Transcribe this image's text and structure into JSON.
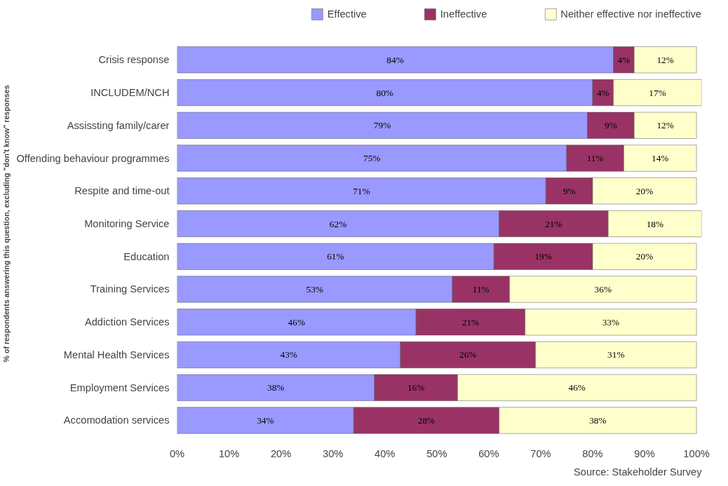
{
  "chart_data": {
    "type": "bar",
    "orientation": "horizontal",
    "stacked": true,
    "ylabel": "% of respondents answering this question, excluding \"don't know\" responses",
    "categories": [
      "Crisis response",
      "INCLUDEM/NCH",
      "Assissting family/carer",
      "Offending behaviour programmes",
      "Respite and time-out",
      "Monitoring Service",
      "Education",
      "Training Services",
      "Addiction Services",
      "Mental Health Services",
      "Employment Services",
      "Accomodation services"
    ],
    "series": [
      {
        "name": "Effective",
        "color": "#9999ff",
        "values": [
          84,
          80,
          79,
          75,
          71,
          62,
          61,
          53,
          46,
          43,
          38,
          34
        ],
        "value_labels": [
          "84%",
          "80%",
          "79%",
          "75%",
          "71%",
          "62%",
          "61%",
          "53%",
          "46%",
          "43%",
          "38%",
          "34%"
        ]
      },
      {
        "name": "Ineffective",
        "color": "#993366",
        "values": [
          4,
          4,
          9,
          11,
          9,
          21,
          19,
          11,
          21,
          26,
          16,
          28
        ],
        "value_labels": [
          "4%",
          "4%",
          "9%",
          "11%",
          "9%",
          "21%",
          "19%",
          "11%",
          "21%",
          "26%",
          "16%",
          "28%"
        ]
      },
      {
        "name": "Neither effective nor ineffective",
        "color": "#ffffcc",
        "values": [
          12,
          17,
          12,
          14,
          20,
          18,
          20,
          36,
          33,
          31,
          46,
          38
        ],
        "value_labels": [
          "12%",
          "17%",
          "12%",
          "14%",
          "20%",
          "18%",
          "20%",
          "36%",
          "33%",
          "31%",
          "46%",
          "38%"
        ]
      }
    ],
    "xlim": [
      0,
      101
    ],
    "xticks": [
      {
        "value": 0,
        "label": "0%"
      },
      {
        "value": 10,
        "label": "10%"
      },
      {
        "value": 20,
        "label": "20%"
      },
      {
        "value": 30,
        "label": "30%"
      },
      {
        "value": 40,
        "label": "40%"
      },
      {
        "value": 50,
        "label": "50%"
      },
      {
        "value": 60,
        "label": "60%"
      },
      {
        "value": 70,
        "label": "70%"
      },
      {
        "value": 80,
        "label": "80%"
      },
      {
        "value": 90,
        "label": "90%"
      },
      {
        "value": 100,
        "label": "100%"
      }
    ],
    "grid": false,
    "legend": "top",
    "annotations": [
      "Source: Stakeholder Survey"
    ]
  }
}
